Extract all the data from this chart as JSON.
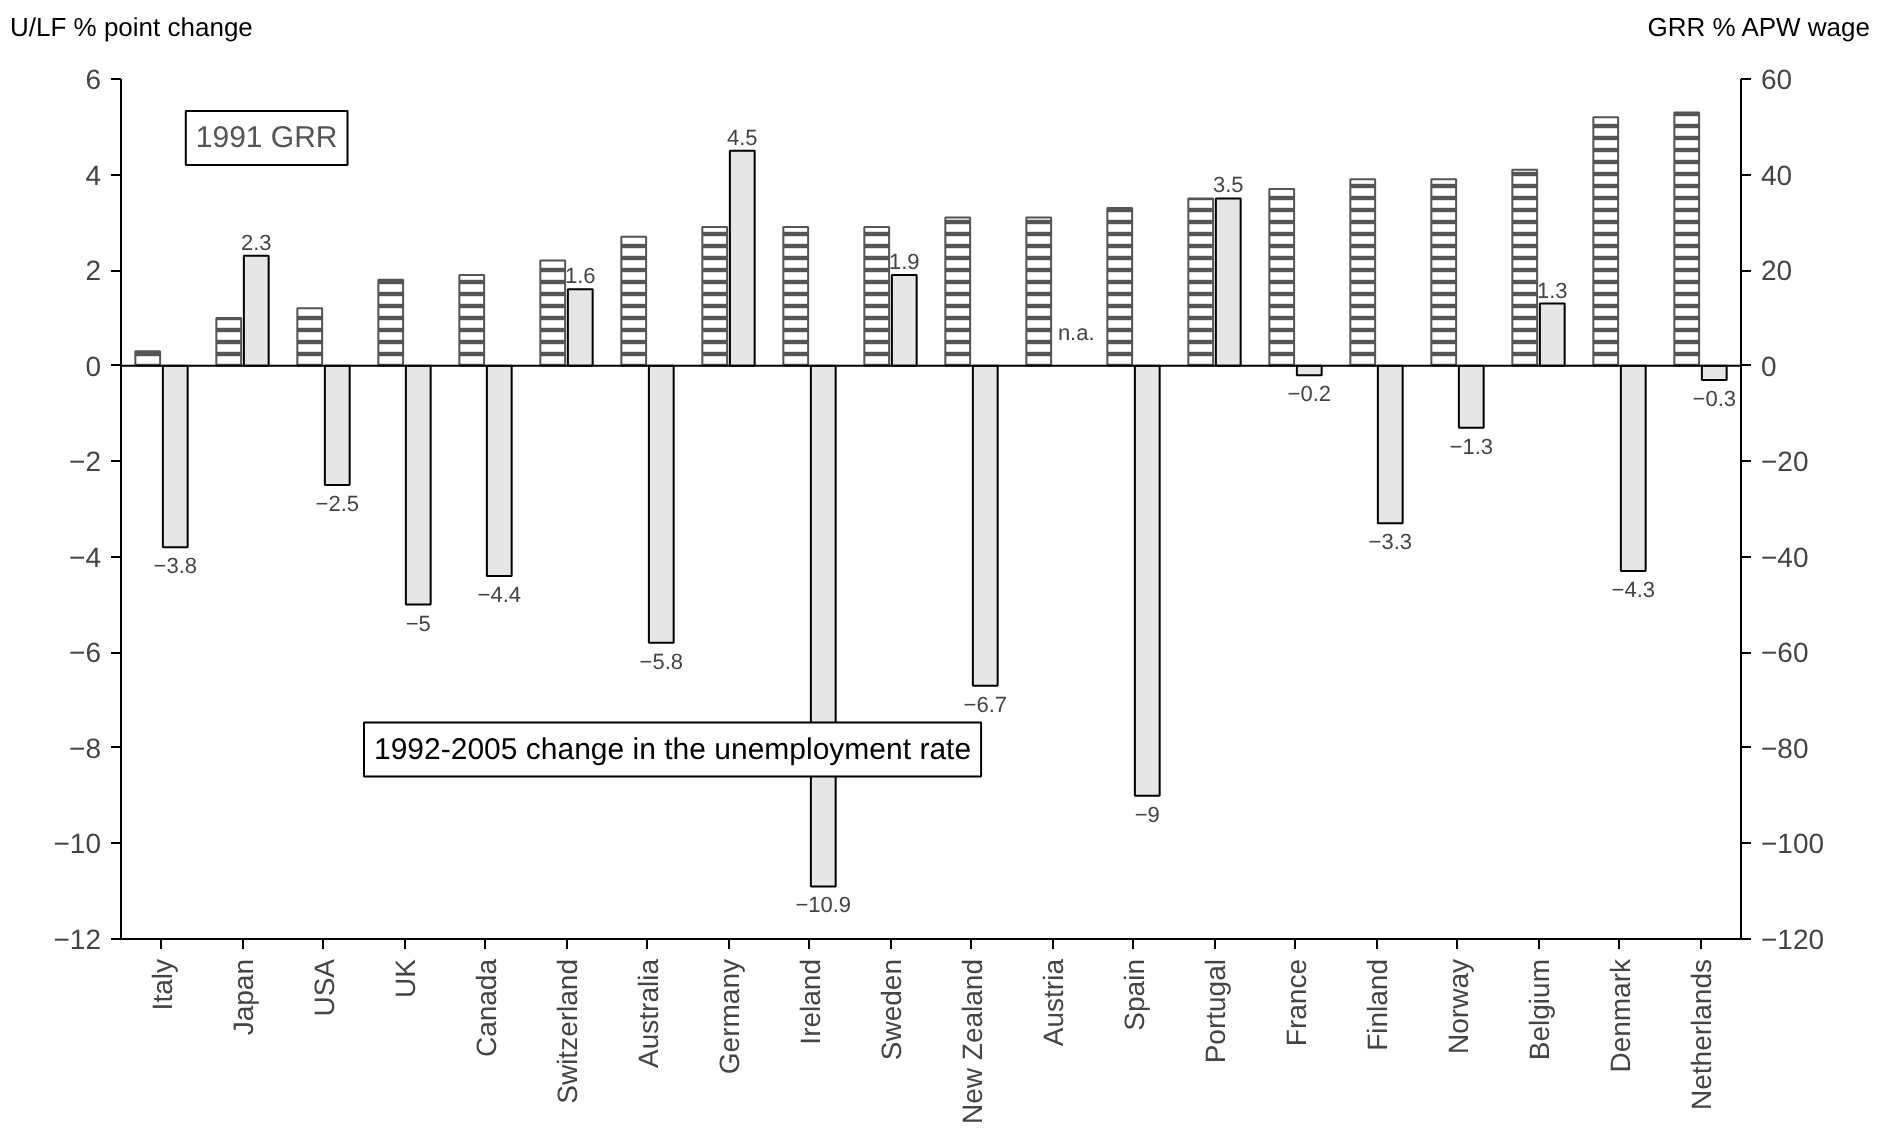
{
  "chart_data": {
    "type": "bar",
    "ylabel": "U/LF % point change",
    "y2label": "GRR % APW wage",
    "categories": [
      "Italy",
      "Japan",
      "USA",
      "UK",
      "Canada",
      "Switzerland",
      "Australia",
      "Germany",
      "Ireland",
      "Sweden",
      "New Zealand",
      "Austria",
      "Spain",
      "Portugal",
      "France",
      "Finland",
      "Norway",
      "Belgium",
      "Denmark",
      "Netherlands"
    ],
    "series": [
      {
        "name": "1991 GRR",
        "color": "#555555",
        "axis": "y2",
        "values": [
          3,
          10,
          12,
          18,
          19,
          22,
          27,
          29,
          29,
          29,
          31,
          31,
          33,
          35,
          37,
          39,
          39,
          41,
          52,
          53
        ]
      },
      {
        "name": "1992-2005 change in the unemployment rate",
        "color": "#e6e6e6",
        "values": [
          -3.8,
          2.3,
          -2.5,
          -5,
          -4.4,
          1.6,
          -5.8,
          4.5,
          -10.9,
          1.9,
          -6.7,
          null,
          -9,
          3.5,
          -0.2,
          -3.3,
          -1.3,
          1.3,
          -4.3,
          -0.3
        ],
        "value_labels": [
          "−3.8",
          "2.3",
          "−2.5",
          "−5",
          "−4.4",
          "1.6",
          "−5.8",
          "4.5",
          "−10.9",
          "1.9",
          "−6.7",
          "n.a.",
          "−9",
          "3.5",
          "−0.2",
          "−3.3",
          "−1.3",
          "1.3",
          "−4.3",
          "−0.3"
        ]
      }
    ],
    "ylim": [
      -12,
      6
    ],
    "yticks": [
      -12,
      -10,
      -8,
      -6,
      -4,
      -2,
      0,
      2,
      4,
      6
    ],
    "y2lim": [
      -120,
      60
    ],
    "y2ticks": [
      -120,
      -100,
      -80,
      -60,
      -40,
      -20,
      0,
      20,
      40,
      60
    ]
  }
}
